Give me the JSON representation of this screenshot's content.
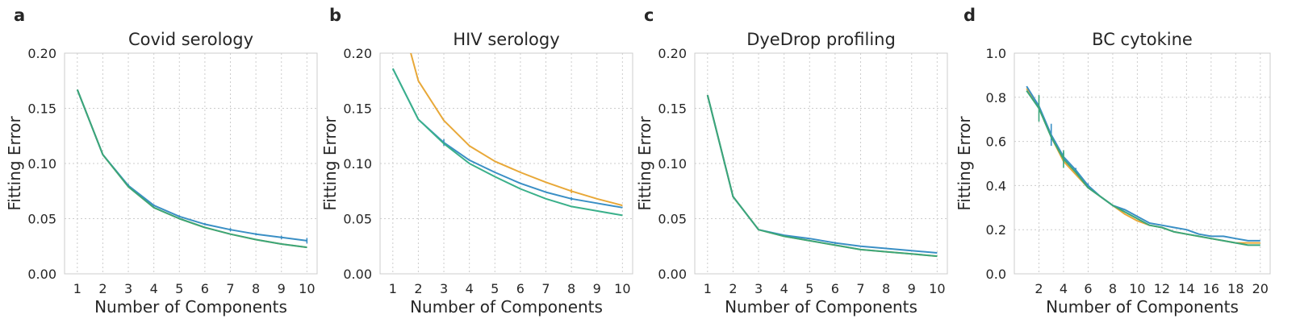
{
  "chart_data": [
    {
      "letter": "a",
      "type": "line",
      "title": "Covid serology",
      "xlabel": "Number of Components",
      "ylabel": "Fitting Error",
      "xlim": [
        0.5,
        10.4
      ],
      "ylim": [
        0,
        0.2
      ],
      "xticks": [
        1,
        2,
        3,
        4,
        5,
        6,
        7,
        8,
        9,
        10
      ],
      "xtick_labels": [
        "1",
        "2",
        "3",
        "4",
        "5",
        "6",
        "7",
        "8",
        "9",
        "10"
      ],
      "yticks": [
        0,
        0.05,
        0.1,
        0.15,
        0.2
      ],
      "ytick_labels": [
        "0.00",
        "0.05",
        "0.10",
        "0.15",
        "0.20"
      ],
      "grid": true,
      "series": [
        {
          "color": "#e8a838",
          "x": [
            1,
            2,
            3,
            4,
            5,
            6,
            7,
            8,
            9,
            10
          ],
          "values": [
            0.167,
            0.108,
            0.079,
            0.06,
            0.05,
            0.042,
            0.036,
            0.031,
            0.027,
            0.024
          ],
          "err": []
        },
        {
          "color": "#3a8fc5",
          "x": [
            1,
            2,
            3,
            4,
            5,
            6,
            7,
            8,
            9,
            10
          ],
          "values": [
            0.167,
            0.108,
            0.08,
            0.062,
            0.052,
            0.045,
            0.04,
            0.036,
            0.033,
            0.03
          ],
          "err": [
            0,
            0,
            0.0015,
            0.001,
            0.001,
            0.001,
            0.0015,
            0.001,
            0.0015,
            0.0025
          ]
        },
        {
          "color": "#3aa67a",
          "x": [
            1,
            2,
            3,
            4,
            5,
            6,
            7,
            8,
            9,
            10
          ],
          "values": [
            0.167,
            0.108,
            0.079,
            0.06,
            0.05,
            0.042,
            0.036,
            0.031,
            0.027,
            0.024
          ],
          "err": []
        }
      ]
    },
    {
      "letter": "b",
      "type": "line",
      "title": "HIV serology",
      "xlabel": "Number of Components",
      "ylabel": "Fitting Error",
      "xlim": [
        0.5,
        10.4
      ],
      "ylim": [
        0,
        0.2
      ],
      "xticks": [
        1,
        2,
        3,
        4,
        5,
        6,
        7,
        8,
        9,
        10
      ],
      "xtick_labels": [
        "1",
        "2",
        "3",
        "4",
        "5",
        "6",
        "7",
        "8",
        "9",
        "10"
      ],
      "yticks": [
        0,
        0.05,
        0.1,
        0.15,
        0.2
      ],
      "ytick_labels": [
        "0.00",
        "0.05",
        "0.10",
        "0.15",
        "0.20"
      ],
      "grid": true,
      "series": [
        {
          "color": "#e8a838",
          "x": [
            1,
            2,
            3,
            4,
            5,
            6,
            7,
            8,
            9,
            10
          ],
          "values": [
            0.26,
            0.175,
            0.139,
            0.116,
            0.102,
            0.092,
            0.083,
            0.075,
            0.068,
            0.062
          ],
          "err": [
            0,
            0,
            0,
            0,
            0,
            0,
            0,
            0.002,
            0,
            0
          ]
        },
        {
          "color": "#3a8fc5",
          "x": [
            1,
            2,
            3,
            4,
            5,
            6,
            7,
            8,
            9,
            10
          ],
          "values": [
            0.186,
            0.14,
            0.119,
            0.103,
            0.092,
            0.082,
            0.074,
            0.068,
            0.064,
            0.06
          ],
          "err": [
            0,
            0,
            0.003,
            0,
            0,
            0,
            0,
            0.0015,
            0,
            0
          ]
        },
        {
          "color": "#3ab08a",
          "x": [
            1,
            2,
            3,
            4,
            5,
            6,
            7,
            8,
            9,
            10
          ],
          "values": [
            0.186,
            0.14,
            0.118,
            0.1,
            0.088,
            0.077,
            0.068,
            0.061,
            0.057,
            0.053
          ],
          "err": []
        }
      ]
    },
    {
      "letter": "c",
      "type": "line",
      "title": "DyeDrop profiling",
      "xlabel": "Number of Components",
      "ylabel": "Fitting Error",
      "xlim": [
        0.5,
        10.4
      ],
      "ylim": [
        0,
        0.2
      ],
      "xticks": [
        1,
        2,
        3,
        4,
        5,
        6,
        7,
        8,
        9,
        10
      ],
      "xtick_labels": [
        "1",
        "2",
        "3",
        "4",
        "5",
        "6",
        "7",
        "8",
        "9",
        "10"
      ],
      "yticks": [
        0,
        0.05,
        0.1,
        0.15,
        0.2
      ],
      "ytick_labels": [
        "0.00",
        "0.05",
        "0.10",
        "0.15",
        "0.20"
      ],
      "grid": true,
      "series": [
        {
          "color": "#e8a838",
          "x": [
            1,
            2,
            3,
            4,
            5,
            6,
            7,
            8,
            9,
            10
          ],
          "values": [
            0.162,
            0.07,
            0.04,
            0.034,
            0.03,
            0.026,
            0.022,
            0.02,
            0.018,
            0.016
          ],
          "err": []
        },
        {
          "color": "#3a8fc5",
          "x": [
            1,
            2,
            3,
            4,
            5,
            6,
            7,
            8,
            9,
            10
          ],
          "values": [
            0.162,
            0.07,
            0.04,
            0.035,
            0.032,
            0.028,
            0.025,
            0.023,
            0.021,
            0.019
          ],
          "err": [
            0,
            0,
            0,
            0,
            0,
            0.001,
            0,
            0,
            0,
            0
          ]
        },
        {
          "color": "#3aa67a",
          "x": [
            1,
            2,
            3,
            4,
            5,
            6,
            7,
            8,
            9,
            10
          ],
          "values": [
            0.162,
            0.07,
            0.04,
            0.034,
            0.03,
            0.026,
            0.022,
            0.02,
            0.018,
            0.016
          ],
          "err": []
        }
      ]
    },
    {
      "letter": "d",
      "type": "line",
      "title": "BC cytokine",
      "xlabel": "Number of Components",
      "ylabel": "Fitting Error",
      "xlim": [
        0,
        20.8
      ],
      "ylim": [
        0,
        1.0
      ],
      "xticks": [
        2,
        4,
        6,
        8,
        10,
        12,
        14,
        16,
        18,
        20
      ],
      "xtick_labels": [
        "2",
        "4",
        "6",
        "8",
        "10",
        "12",
        "14",
        "16",
        "18",
        "20"
      ],
      "yticks": [
        0,
        0.2,
        0.4,
        0.6,
        0.8,
        1.0
      ],
      "ytick_labels": [
        "0.0",
        "0.2",
        "0.4",
        "0.6",
        "0.8",
        "1.0"
      ],
      "grid": true,
      "series": [
        {
          "color": "#e8a838",
          "x": [
            1,
            2,
            3,
            4,
            5,
            6,
            7,
            8,
            9,
            10,
            11,
            12,
            13,
            14,
            15,
            16,
            17,
            18,
            19,
            20
          ],
          "values": [
            0.84,
            0.75,
            0.62,
            0.51,
            0.45,
            0.39,
            0.35,
            0.31,
            0.27,
            0.24,
            0.22,
            0.21,
            0.19,
            0.18,
            0.17,
            0.16,
            0.15,
            0.14,
            0.14,
            0.14
          ],
          "err": []
        },
        {
          "color": "#3a8fc5",
          "x": [
            1,
            2,
            3,
            4,
            5,
            6,
            7,
            8,
            9,
            10,
            11,
            12,
            13,
            14,
            15,
            16,
            17,
            18,
            19,
            20
          ],
          "values": [
            0.85,
            0.76,
            0.63,
            0.53,
            0.47,
            0.4,
            0.35,
            0.31,
            0.29,
            0.26,
            0.23,
            0.22,
            0.21,
            0.2,
            0.18,
            0.17,
            0.17,
            0.16,
            0.15,
            0.15
          ],
          "err": [
            0,
            0,
            0.05,
            0.02,
            0.01,
            0.01,
            0,
            0,
            0,
            0,
            0,
            0,
            0,
            0,
            0,
            0,
            0,
            0,
            0,
            0
          ]
        },
        {
          "color": "#3aa67a",
          "x": [
            1,
            2,
            3,
            4,
            5,
            6,
            7,
            8,
            9,
            10,
            11,
            12,
            13,
            14,
            15,
            16,
            17,
            18,
            19,
            20
          ],
          "values": [
            0.83,
            0.75,
            0.62,
            0.52,
            0.46,
            0.39,
            0.35,
            0.31,
            0.28,
            0.25,
            0.22,
            0.21,
            0.19,
            0.18,
            0.17,
            0.16,
            0.15,
            0.14,
            0.13,
            0.13
          ],
          "err": [
            0,
            0.06,
            0,
            0.04,
            0,
            0,
            0,
            0,
            0,
            0,
            0,
            0,
            0,
            0,
            0,
            0,
            0,
            0,
            0,
            0
          ]
        }
      ]
    }
  ]
}
